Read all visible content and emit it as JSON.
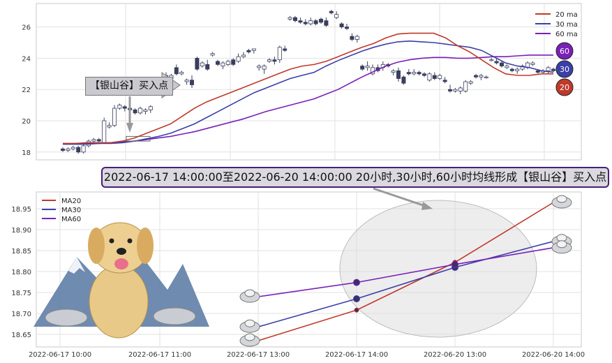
{
  "chart_data": [
    {
      "type": "candlestick",
      "ylim": [
        17.5,
        27.5
      ],
      "yticks": [
        18,
        20,
        22,
        24,
        26
      ],
      "grid": true,
      "legend": {
        "position": "top-right",
        "entries": [
          "20 ma",
          "30 ma",
          "60 ma"
        ]
      },
      "series_colors": {
        "20 ma": "#c0392b",
        "30 ma": "#3b3fa8",
        "60 ma": "#7a1fb8"
      },
      "ohlc": [
        [
          18.2,
          18.3,
          18.0,
          18.1
        ],
        [
          18.1,
          18.3,
          18.0,
          18.2
        ],
        [
          18.2,
          18.4,
          18.1,
          18.3
        ],
        [
          18.3,
          18.4,
          17.9,
          18.0
        ],
        [
          18.0,
          18.5,
          17.9,
          18.4
        ],
        [
          18.4,
          18.8,
          18.3,
          18.7
        ],
        [
          18.7,
          18.9,
          18.6,
          18.8
        ],
        [
          18.8,
          18.9,
          18.6,
          18.7
        ],
        [
          18.6,
          20.2,
          18.6,
          20.0
        ],
        [
          19.6,
          19.9,
          19.5,
          19.7
        ],
        [
          19.7,
          21.0,
          19.6,
          20.8
        ],
        [
          20.8,
          21.1,
          20.7,
          21.0
        ],
        [
          20.9,
          21.0,
          20.6,
          20.8
        ],
        [
          20.8,
          21.0,
          20.6,
          20.7
        ],
        [
          20.7,
          20.8,
          20.4,
          20.5
        ],
        [
          20.5,
          20.9,
          20.4,
          20.8
        ],
        [
          20.6,
          20.8,
          20.4,
          20.7
        ],
        [
          20.7,
          21.0,
          20.5,
          20.9
        ],
        [
          22.4,
          22.6,
          22.3,
          22.5
        ],
        [
          22.3,
          22.5,
          22.2,
          22.4
        ],
        [
          22.2,
          23.1,
          22.1,
          22.9
        ],
        [
          22.7,
          23.0,
          22.4,
          22.9
        ],
        [
          23.4,
          23.6,
          22.9,
          23.0
        ],
        [
          23.0,
          23.2,
          22.9,
          23.1
        ],
        [
          22.5,
          22.7,
          22.3,
          22.6
        ],
        [
          22.6,
          22.9,
          22.1,
          22.3
        ],
        [
          24.0,
          24.1,
          23.2,
          23.3
        ],
        [
          23.5,
          23.8,
          23.4,
          23.7
        ],
        [
          23.6,
          23.9,
          23.2,
          23.3
        ],
        [
          24.2,
          24.4,
          24.1,
          24.3
        ],
        [
          23.8,
          23.9,
          23.5,
          23.6
        ],
        [
          23.5,
          23.8,
          23.3,
          23.7
        ],
        [
          23.6,
          23.9,
          23.5,
          23.8
        ],
        [
          23.9,
          24.0,
          23.5,
          23.6
        ],
        [
          23.8,
          24.3,
          23.7,
          24.1
        ],
        [
          24.1,
          24.4,
          24.0,
          24.2
        ],
        [
          24.5,
          24.6,
          24.3,
          24.4
        ],
        [
          24.5,
          24.6,
          24.3,
          24.6
        ],
        [
          23.4,
          23.6,
          23.2,
          23.5
        ],
        [
          23.3,
          23.6,
          23.0,
          23.5
        ],
        [
          23.8,
          24.0,
          23.7,
          23.9
        ],
        [
          23.9,
          24.1,
          23.6,
          23.8
        ],
        [
          23.9,
          24.8,
          23.7,
          24.7
        ],
        [
          24.6,
          24.8,
          24.4,
          24.5
        ],
        [
          26.5,
          26.7,
          26.4,
          26.6
        ],
        [
          26.6,
          26.7,
          26.3,
          26.4
        ],
        [
          26.4,
          26.6,
          26.2,
          26.3
        ],
        [
          26.3,
          26.5,
          26.1,
          26.2
        ],
        [
          26.2,
          26.6,
          26.1,
          26.4
        ],
        [
          26.4,
          26.5,
          26.1,
          26.2
        ],
        [
          26.5,
          26.6,
          26.2,
          26.3
        ],
        [
          26.4,
          26.6,
          26.0,
          26.1
        ],
        [
          27.0,
          27.1,
          26.8,
          26.9
        ],
        [
          26.6,
          27.0,
          26.5,
          26.8
        ],
        [
          26.2,
          26.3,
          25.9,
          26.0
        ],
        [
          26.0,
          26.2,
          25.8,
          25.9
        ],
        [
          25.4,
          25.6,
          25.1,
          25.2
        ],
        [
          25.2,
          25.5,
          25.0,
          25.4
        ],
        [
          23.5,
          23.6,
          23.2,
          23.3
        ],
        [
          23.4,
          23.8,
          23.2,
          23.5
        ],
        [
          23.0,
          23.6,
          22.9,
          23.4
        ],
        [
          23.4,
          23.6,
          23.1,
          23.2
        ],
        [
          23.4,
          23.8,
          23.2,
          23.6
        ],
        [
          23.6,
          23.7,
          23.4,
          23.5
        ],
        [
          23.1,
          23.3,
          22.9,
          23.2
        ],
        [
          23.2,
          23.4,
          22.5,
          22.7
        ],
        [
          22.8,
          22.9,
          22.3,
          22.4
        ],
        [
          23.1,
          23.3,
          22.9,
          23.0
        ],
        [
          23.0,
          23.3,
          22.9,
          23.1
        ],
        [
          23.1,
          23.2,
          22.9,
          23.0
        ],
        [
          23.0,
          23.1,
          22.8,
          22.9
        ],
        [
          22.6,
          23.1,
          22.5,
          23.0
        ],
        [
          22.9,
          23.1,
          22.6,
          22.7
        ],
        [
          22.7,
          23.0,
          22.6,
          22.9
        ],
        [
          22.6,
          22.8,
          22.4,
          22.5
        ],
        [
          22.0,
          22.3,
          21.8,
          21.9
        ],
        [
          21.9,
          22.1,
          21.8,
          22.0
        ],
        [
          21.9,
          22.2,
          21.7,
          22.1
        ],
        [
          21.9,
          22.6,
          21.8,
          22.5
        ],
        [
          22.4,
          22.6,
          22.3,
          22.5
        ],
        [
          22.9,
          23.0,
          22.7,
          22.8
        ],
        [
          22.8,
          23.0,
          22.6,
          22.9
        ],
        [
          22.8,
          22.9,
          22.7,
          22.8
        ],
        [
          23.9,
          24.0,
          23.8,
          23.9
        ],
        [
          23.8,
          24.0,
          23.6,
          23.7
        ],
        [
          23.7,
          23.8,
          23.4,
          23.5
        ],
        [
          23.4,
          23.6,
          23.3,
          23.5
        ],
        [
          23.3,
          23.4,
          23.1,
          23.2
        ],
        [
          23.2,
          23.4,
          23.0,
          23.3
        ],
        [
          23.3,
          23.6,
          23.2,
          23.5
        ],
        [
          23.4,
          23.8,
          23.3,
          23.7
        ],
        [
          23.6,
          23.8,
          23.5,
          23.7
        ],
        [
          23.2,
          23.3,
          23.0,
          23.1
        ],
        [
          23.1,
          23.3,
          23.0,
          23.2
        ],
        [
          23.2,
          23.5,
          23.0,
          23.4
        ],
        [
          23.3,
          23.4,
          23.1,
          23.2
        ]
      ],
      "ma": {
        "20 ma": [
          18.55,
          18.55,
          18.6,
          18.6,
          18.6,
          18.7,
          18.9,
          19.2,
          19.5,
          19.8,
          20.3,
          20.8,
          21.2,
          21.5,
          21.8,
          22.1,
          22.4,
          22.7,
          23.0,
          23.3,
          23.5,
          23.6,
          23.8,
          24.1,
          24.4,
          24.7,
          24.95,
          25.3,
          25.55,
          25.6,
          25.6,
          25.6,
          25.3,
          24.8,
          24.4,
          23.9,
          23.4,
          23.0,
          22.9,
          22.9,
          23.0,
          23.0
        ],
        "30 ma": [
          18.5,
          18.5,
          18.5,
          18.55,
          18.55,
          18.6,
          18.7,
          18.85,
          19.0,
          19.2,
          19.5,
          19.8,
          20.2,
          20.6,
          21.0,
          21.4,
          21.8,
          22.1,
          22.4,
          22.7,
          22.9,
          23.1,
          23.5,
          23.85,
          24.15,
          24.45,
          24.7,
          24.9,
          25.05,
          25.1,
          25.05,
          25.0,
          24.9,
          24.8,
          24.7,
          24.5,
          24.1,
          23.7,
          23.5,
          23.4,
          23.2,
          23.1
        ],
        "60 ma": [
          18.55,
          18.55,
          18.55,
          18.55,
          18.6,
          18.65,
          18.7,
          18.8,
          18.9,
          19.0,
          19.15,
          19.3,
          19.5,
          19.7,
          19.9,
          20.1,
          20.35,
          20.6,
          20.8,
          21.0,
          21.2,
          21.4,
          21.7,
          22.0,
          22.4,
          22.8,
          23.15,
          23.5,
          23.75,
          23.9,
          24.0,
          24.05,
          24.05,
          24.0,
          24.0,
          24.05,
          24.1,
          24.1,
          24.15,
          24.2,
          24.2,
          24.2
        ]
      },
      "badges": [
        "60",
        "30",
        "20"
      ],
      "annotation": "【银山谷】买入点"
    },
    {
      "type": "line",
      "x": [
        "2022-06-17 10:00",
        "2022-06-17 11:00",
        "2022-06-17 13:00",
        "2022-06-17 14:00",
        "2022-06-20 13:00",
        "2022-06-20 14:00"
      ],
      "ylim": [
        18.62,
        18.99
      ],
      "yticks": [
        18.65,
        18.7,
        18.75,
        18.8,
        18.85,
        18.9,
        18.95
      ],
      "grid": true,
      "legend": {
        "position": "top-left",
        "entries": [
          "MA20",
          "MA30",
          "MA60"
        ]
      },
      "series": [
        {
          "name": "MA20",
          "color": "#c0392b",
          "points": [
            [
              2,
              18.635
            ],
            [
              3,
              18.708
            ],
            [
              4,
              18.822
            ],
            [
              5,
              18.965
            ]
          ]
        },
        {
          "name": "MA30",
          "color": "#3b3fa8",
          "points": [
            [
              2,
              18.668
            ],
            [
              3,
              18.735
            ],
            [
              4,
              18.81
            ],
            [
              5,
              18.872
            ]
          ]
        },
        {
          "name": "MA60",
          "color": "#7a1fb8",
          "points": [
            [
              2,
              18.74
            ],
            [
              3,
              18.774
            ],
            [
              4,
              18.817
            ],
            [
              5,
              18.857
            ]
          ]
        }
      ]
    }
  ],
  "banner": "2022-06-17 14:00:00至2022-06-20 14:00:00 20小时,30小时,60小时均线形成【银山谷】买入点",
  "callout": "【银山谷】买入点"
}
